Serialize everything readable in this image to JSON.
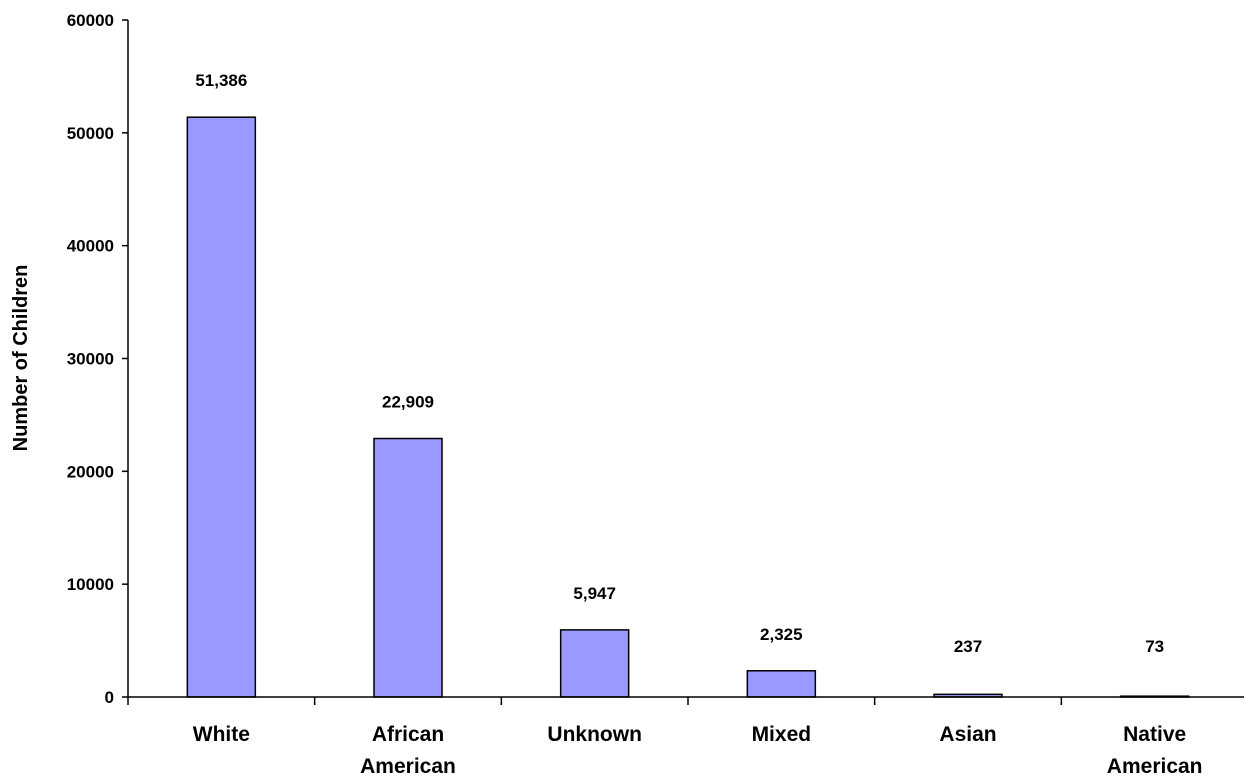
{
  "chart_data": {
    "type": "bar",
    "title": "",
    "xlabel": "",
    "ylabel": "Number of Children",
    "ylim": [
      0,
      60000
    ],
    "y_ticks": [
      "0",
      "10000",
      "20000",
      "30000",
      "40000",
      "50000",
      "60000"
    ],
    "grid": false,
    "legend": "none",
    "bar_color": "#9999ff",
    "bar_border_color": "#000000",
    "categories": [
      [
        "White"
      ],
      [
        "African",
        "American"
      ],
      [
        "Unknown"
      ],
      [
        "Mixed"
      ],
      [
        "Asian"
      ],
      [
        "Native",
        "American"
      ]
    ],
    "values": [
      51386,
      22909,
      5947,
      2325,
      237,
      73
    ],
    "data_labels": [
      "51,386",
      "22,909",
      "5,947",
      "2,325",
      "237",
      "73"
    ]
  }
}
